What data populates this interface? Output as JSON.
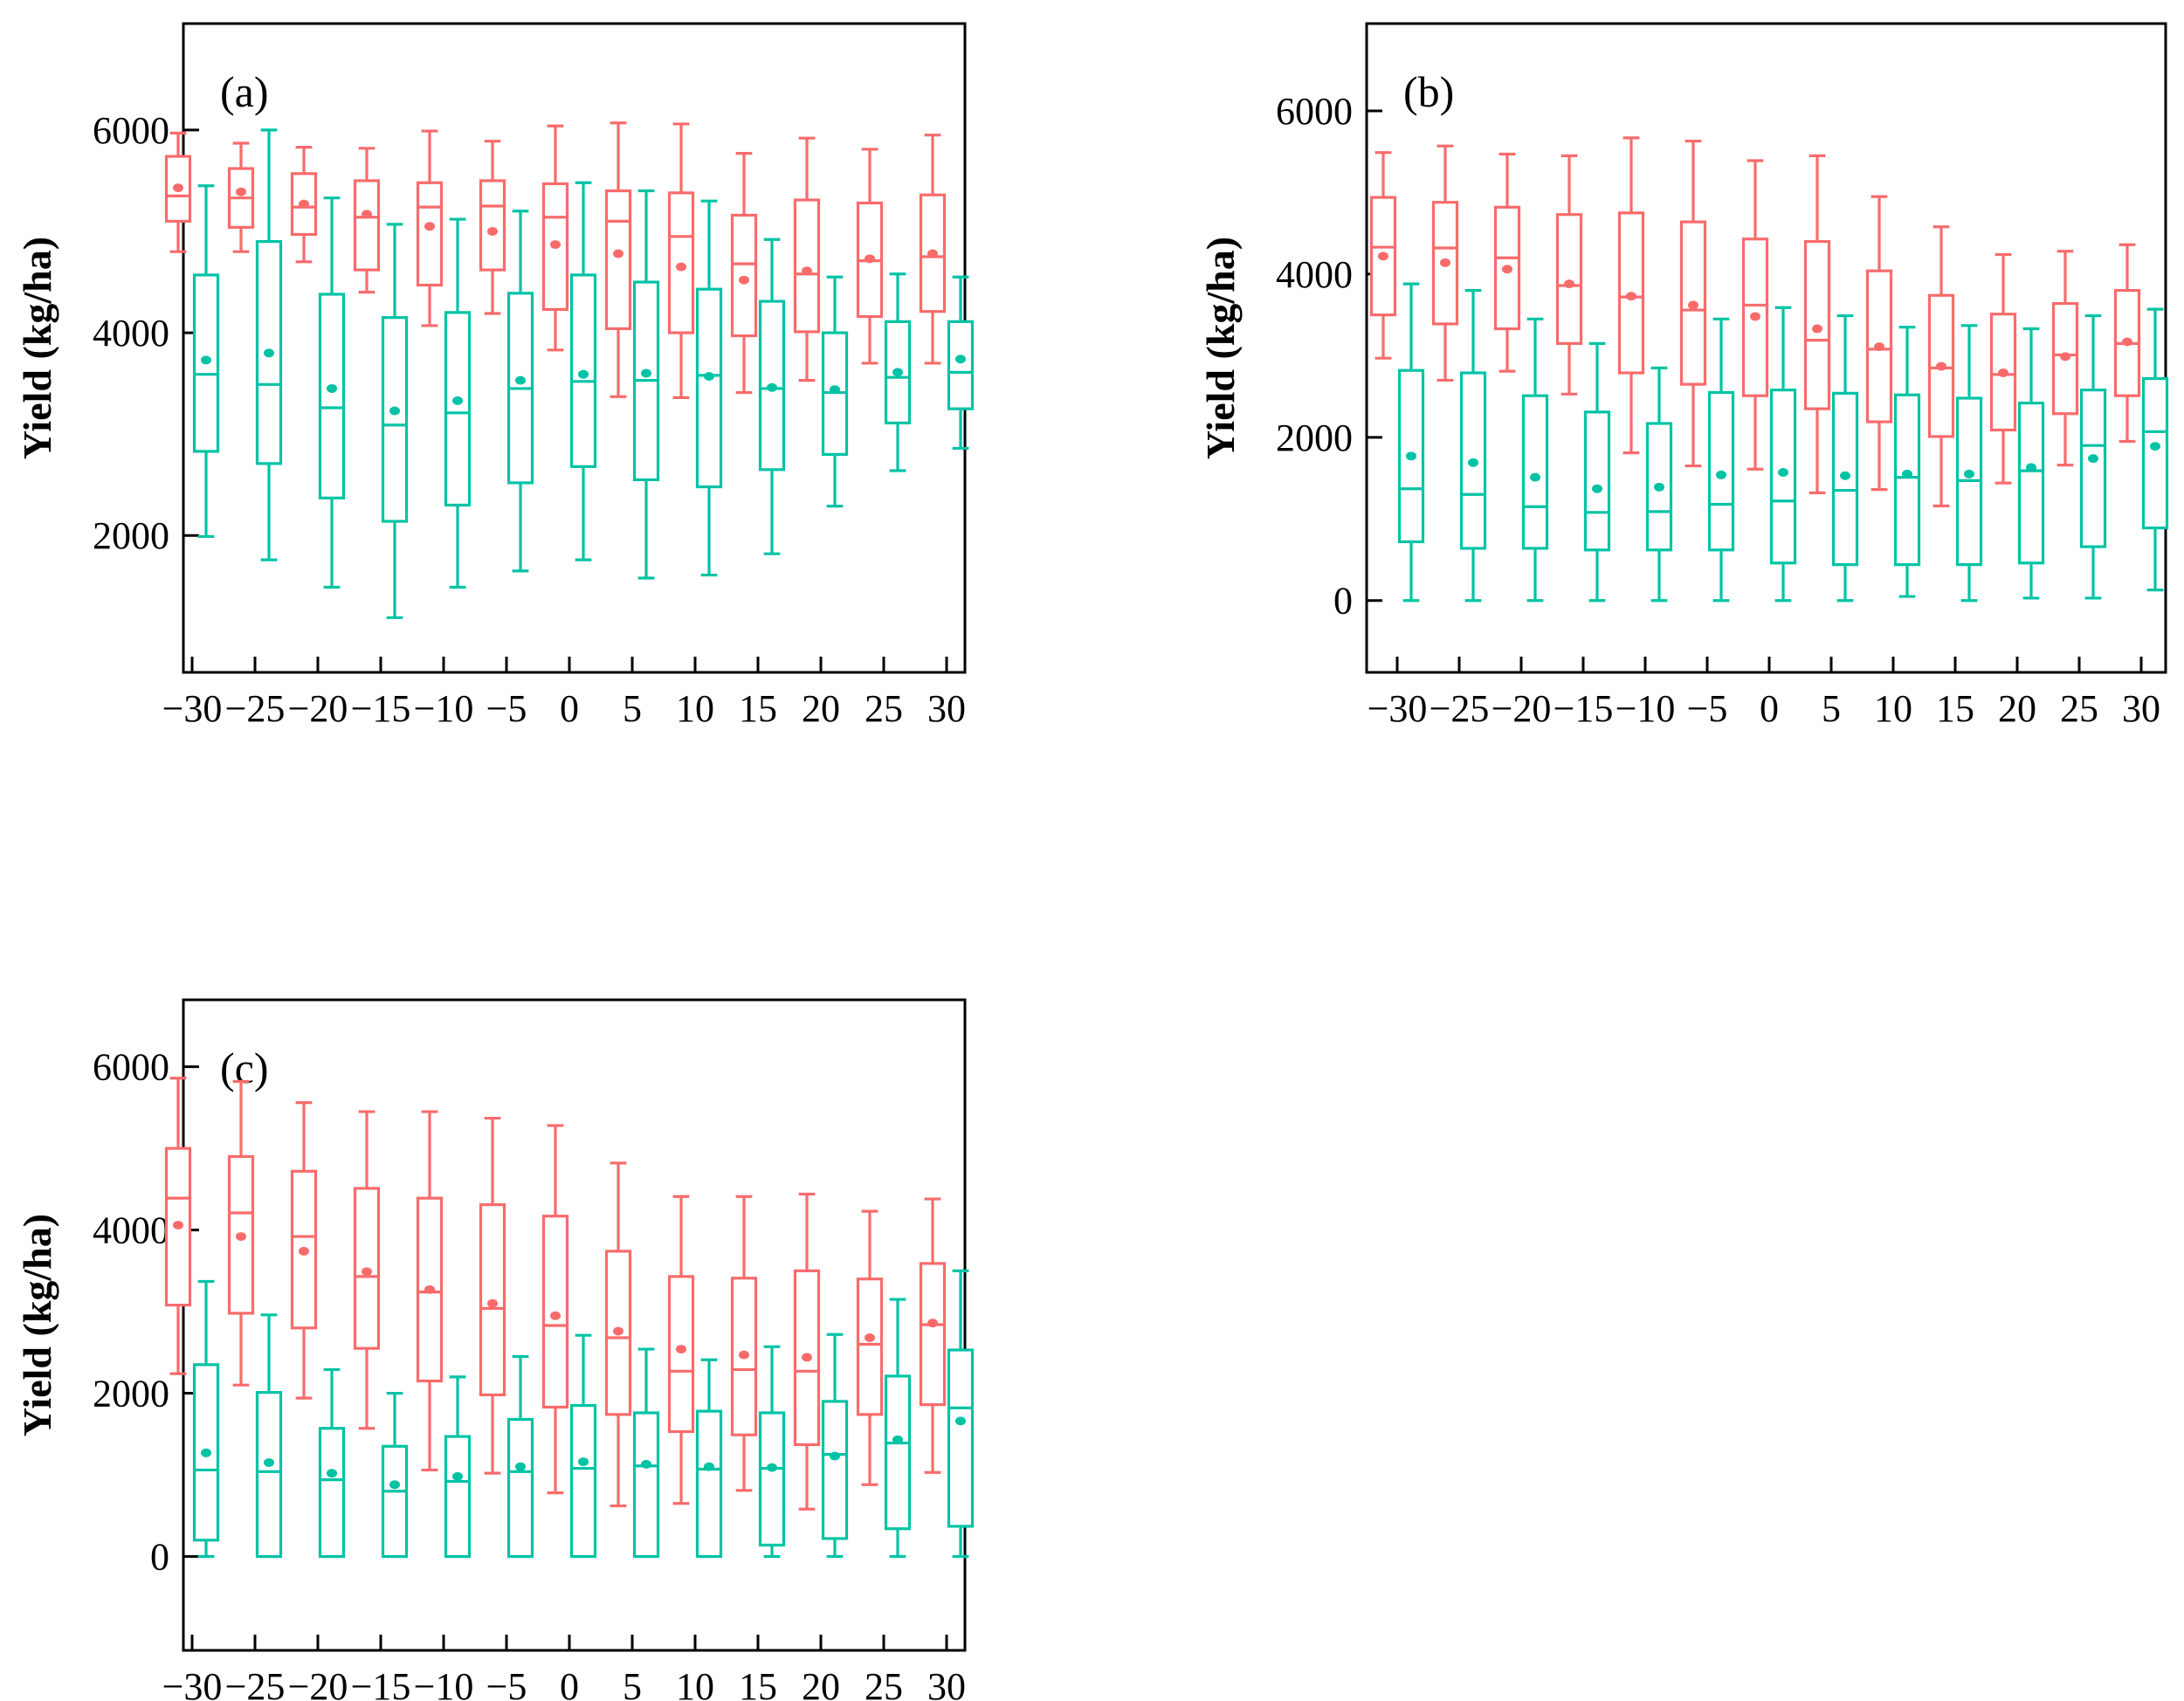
{
  "figure_background": "#ffffff",
  "colors": {
    "axis": "#000000",
    "series_red": "#f96b6b",
    "series_teal": "#00c3a5"
  },
  "box_format": [
    "whisker_low",
    "q1",
    "median",
    "mean",
    "q3",
    "whisker_high"
  ],
  "chart_data": [
    {
      "type": "box",
      "panel_label": "(a)",
      "ylabel": "Yield (kg/ha)",
      "x_tick_labels": [
        "−30",
        "−25",
        "−20",
        "−15",
        "−10",
        "−5",
        "0",
        "5",
        "10",
        "15",
        "20",
        "25",
        "30"
      ],
      "yticks": [
        2000,
        4000,
        6000
      ],
      "ylim": [
        650,
        7050
      ],
      "grid": false,
      "legend": "none",
      "series": [
        {
          "name": "series-red",
          "color": "#f96b6b",
          "boxes": [
            [
              4800,
              5100,
              5350,
              5430,
              5740,
              5970
            ],
            [
              4800,
              5040,
              5330,
              5390,
              5620,
              5870
            ],
            [
              4700,
              4970,
              5240,
              5270,
              5570,
              5830
            ],
            [
              4400,
              4620,
              5140,
              5170,
              5500,
              5820
            ],
            [
              4070,
              4470,
              5240,
              5050,
              5480,
              5990
            ],
            [
              4190,
              4620,
              5250,
              5000,
              5500,
              5890
            ],
            [
              3830,
              4230,
              5140,
              4870,
              5470,
              6040
            ],
            [
              3370,
              4040,
              5100,
              4780,
              5400,
              6070
            ],
            [
              3360,
              4000,
              4950,
              4650,
              5380,
              6060
            ],
            [
              3410,
              3970,
              4680,
              4520,
              5160,
              5770
            ],
            [
              3530,
              4010,
              4580,
              4610,
              5310,
              5920
            ],
            [
              3700,
              4160,
              4710,
              4730,
              5280,
              5810
            ],
            [
              3700,
              4210,
              4750,
              4780,
              5360,
              5950
            ]
          ]
        },
        {
          "name": "series-teal",
          "color": "#00c3a5",
          "boxes": [
            [
              1990,
              2830,
              3590,
              3730,
              4570,
              5450
            ],
            [
              1760,
              2710,
              3490,
              3800,
              4900,
              6000
            ],
            [
              1490,
              2370,
              3260,
              3450,
              4380,
              5330
            ],
            [
              1190,
              2140,
              3090,
              3230,
              4150,
              5070
            ],
            [
              1490,
              2300,
              3210,
              3330,
              4200,
              5120
            ],
            [
              1650,
              2520,
              3450,
              3530,
              4390,
              5200
            ],
            [
              1760,
              2680,
              3520,
              3590,
              4570,
              5480
            ],
            [
              1580,
              2550,
              3530,
              3600,
              4500,
              5400
            ],
            [
              1610,
              2480,
              3580,
              3570,
              4430,
              5300
            ],
            [
              1820,
              2650,
              3450,
              3460,
              4310,
              4920
            ],
            [
              2290,
              2800,
              3410,
              3440,
              4000,
              4550
            ],
            [
              2640,
              3110,
              3560,
              3610,
              4110,
              4580
            ],
            [
              2860,
              3250,
              3610,
              3740,
              4110,
              4550
            ]
          ]
        }
      ]
    },
    {
      "type": "box",
      "panel_label": "(b)",
      "ylabel": "Yield (kg/ha)",
      "x_tick_labels": [
        "−30",
        "−25",
        "−20",
        "−15",
        "−10",
        "−5",
        "0",
        "5",
        "10",
        "15",
        "20",
        "25",
        "30"
      ],
      "yticks": [
        0,
        2000,
        4000,
        6000
      ],
      "ylim": [
        -880,
        7070
      ],
      "grid": false,
      "legend": "none",
      "series": [
        {
          "name": "series-red",
          "color": "#f96b6b",
          "boxes": [
            [
              2970,
              3500,
              4330,
              4220,
              4940,
              5490
            ],
            [
              2700,
              3390,
              4320,
              4140,
              4880,
              5570
            ],
            [
              2810,
              3330,
              4200,
              4060,
              4820,
              5470
            ],
            [
              2530,
              3150,
              3860,
              3880,
              4730,
              5450
            ],
            [
              1810,
              2790,
              3720,
              3730,
              4750,
              5670
            ],
            [
              1650,
              2650,
              3560,
              3620,
              4640,
              5630
            ],
            [
              1610,
              2510,
              3620,
              3480,
              4430,
              5390
            ],
            [
              1320,
              2350,
              3190,
              3330,
              4400,
              5450
            ],
            [
              1360,
              2190,
              3080,
              3110,
              4040,
              4950
            ],
            [
              1160,
              2010,
              2850,
              2870,
              3740,
              4580
            ],
            [
              1440,
              2090,
              2770,
              2790,
              3510,
              4240
            ],
            [
              1660,
              2290,
              3010,
              2990,
              3640,
              4280
            ],
            [
              1950,
              2510,
              3150,
              3170,
              3800,
              4360
            ]
          ]
        },
        {
          "name": "series-teal",
          "color": "#00c3a5",
          "boxes": [
            [
              0,
              720,
              1370,
              1770,
              2820,
              3880
            ],
            [
              0,
              640,
              1300,
              1690,
              2790,
              3800
            ],
            [
              0,
              640,
              1150,
              1510,
              2510,
              3450
            ],
            [
              0,
              620,
              1080,
              1370,
              2310,
              3150
            ],
            [
              0,
              620,
              1090,
              1390,
              2170,
              2850
            ],
            [
              0,
              620,
              1180,
              1540,
              2550,
              3450
            ],
            [
              0,
              460,
              1220,
              1570,
              2580,
              3590
            ],
            [
              0,
              440,
              1350,
              1530,
              2540,
              3490
            ],
            [
              50,
              440,
              1510,
              1550,
              2520,
              3350
            ],
            [
              0,
              440,
              1470,
              1550,
              2480,
              3370
            ],
            [
              30,
              460,
              1590,
              1630,
              2420,
              3330
            ],
            [
              30,
              660,
              1900,
              1740,
              2580,
              3490
            ],
            [
              130,
              890,
              2070,
              1890,
              2720,
              3570
            ]
          ]
        }
      ]
    },
    {
      "type": "box",
      "panel_label": "(c)",
      "ylabel": "Yield (kg/ha)",
      "x_tick_labels": [
        "−30",
        "−25",
        "−20",
        "−15",
        "−10",
        "−5",
        "0",
        "5",
        "10",
        "15",
        "20",
        "25",
        "30"
      ],
      "yticks": [
        0,
        2000,
        4000,
        6000
      ],
      "ylim": [
        -1150,
        6820
      ],
      "grid": false,
      "legend": "none",
      "series": [
        {
          "name": "series-red",
          "color": "#f96b6b",
          "boxes": [
            [
              2240,
              3080,
              4390,
              4060,
              5000,
              5860
            ],
            [
              2100,
              2980,
              4210,
              3920,
              4900,
              5820
            ],
            [
              1940,
              2800,
              3920,
              3740,
              4720,
              5560
            ],
            [
              1570,
              2550,
              3430,
              3490,
              4510,
              5450
            ],
            [
              1060,
              2150,
              3240,
              3270,
              4390,
              5450
            ],
            [
              1020,
              1980,
              3040,
              3100,
              4310,
              5370
            ],
            [
              780,
              1830,
              2830,
              2950,
              4170,
              5280
            ],
            [
              620,
              1740,
              2680,
              2760,
              3740,
              4820
            ],
            [
              650,
              1530,
              2270,
              2540,
              3430,
              4410
            ],
            [
              810,
              1490,
              2290,
              2470,
              3410,
              4410
            ],
            [
              580,
              1370,
              2270,
              2440,
              3500,
              4440
            ],
            [
              880,
              1740,
              2600,
              2680,
              3400,
              4230
            ],
            [
              1030,
              1860,
              2840,
              2860,
              3590,
              4380
            ]
          ]
        },
        {
          "name": "series-teal",
          "color": "#00c3a5",
          "boxes": [
            [
              0,
              200,
              1060,
              1270,
              2350,
              3370
            ],
            [
              0,
              0,
              1040,
              1150,
              2010,
              2960
            ],
            [
              0,
              0,
              940,
              1020,
              1570,
              2290
            ],
            [
              0,
              0,
              800,
              880,
              1350,
              2000
            ],
            [
              0,
              0,
              920,
              980,
              1470,
              2200
            ],
            [
              0,
              0,
              1040,
              1100,
              1680,
              2450
            ],
            [
              0,
              0,
              1080,
              1160,
              1850,
              2710
            ],
            [
              0,
              0,
              1110,
              1130,
              1760,
              2540
            ],
            [
              0,
              0,
              1070,
              1100,
              1780,
              2410
            ],
            [
              0,
              140,
              1080,
              1090,
              1760,
              2570
            ],
            [
              0,
              220,
              1250,
              1230,
              1900,
              2720
            ],
            [
              0,
              340,
              1390,
              1430,
              2210,
              3150
            ],
            [
              0,
              370,
              1820,
              1660,
              2530,
              3500
            ]
          ]
        }
      ]
    }
  ]
}
